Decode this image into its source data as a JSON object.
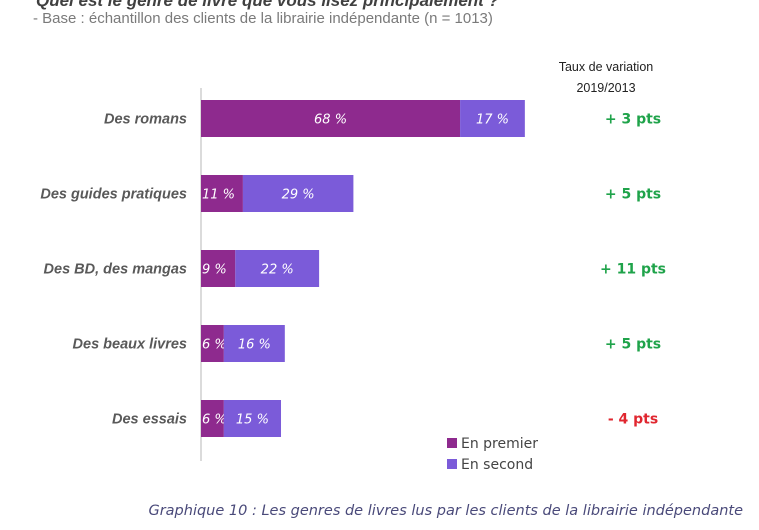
{
  "header": {
    "title": "Quel est le genre de livre que vous lisez principalement ?",
    "subtitle": "- Base : échantillon des clients de la librairie indépendante (n = 1013)",
    "variation_header_line1": "Taux de variation",
    "variation_header_line2": "2019/2013"
  },
  "caption": "Graphique 10 : Les genres de livres lus par les clients de la librairie indépendante",
  "colors": {
    "premier": "#8e2a8e",
    "second": "#7b5bd9",
    "positive": "#1fa34a",
    "negative": "#e0262f",
    "axis": "#cfcfcf"
  },
  "chart_data": {
    "type": "bar",
    "orientation": "horizontal",
    "stacked": true,
    "categories": [
      "Des romans",
      "Des guides pratiques",
      "Des BD, des mangas",
      "Des beaux livres",
      "Des essais"
    ],
    "series": [
      {
        "name": "En premier",
        "values": [
          68,
          11,
          9,
          6,
          6
        ],
        "labels": [
          "68 %",
          "11 %",
          "9 %",
          "6 %",
          "6 %"
        ]
      },
      {
        "name": "En second",
        "values": [
          17,
          29,
          22,
          16,
          15
        ],
        "labels": [
          "17 %",
          "29 %",
          "22 %",
          "16 %",
          "15 %"
        ]
      }
    ],
    "variation": [
      "+ 3 pts",
      "+ 5 pts",
      "+ 11 pts",
      "+ 5 pts",
      "- 4 pts"
    ],
    "variation_sign": [
      "positive",
      "positive",
      "positive",
      "positive",
      "negative"
    ],
    "legend": [
      "En premier",
      "En second"
    ],
    "legend_position": "bottom-right",
    "xlim": [
      0,
      85
    ],
    "grid": false
  }
}
